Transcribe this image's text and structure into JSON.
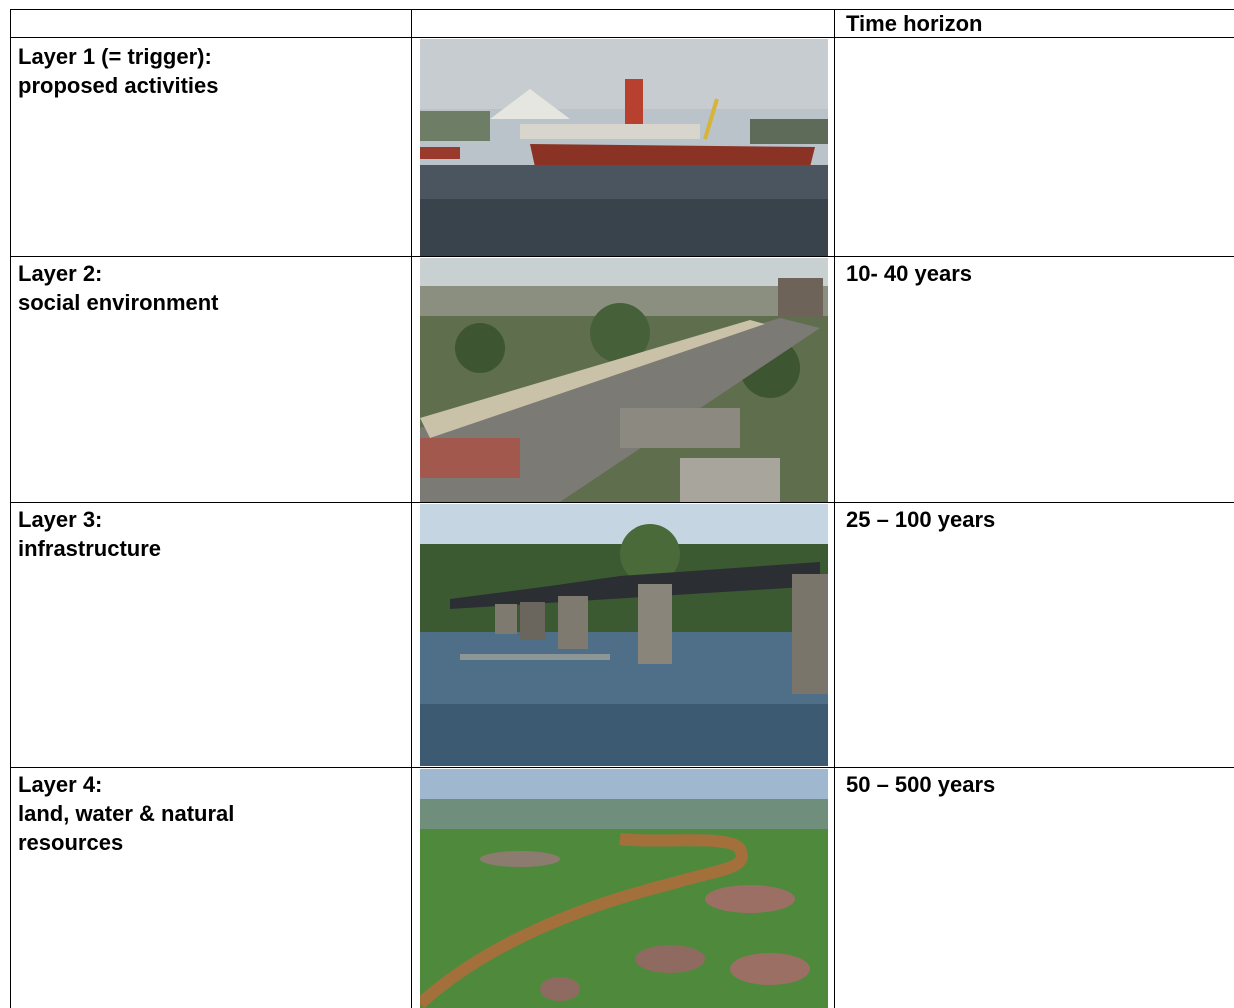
{
  "table": {
    "header": {
      "time_horizon": "Time horizon"
    },
    "rows": [
      {
        "label_lines": [
          "Layer 1 (= trigger):",
          "proposed activities"
        ]
      },
      {
        "label_lines": [
          "Layer 2:",
          "social environment"
        ],
        "time_horizon": "10- 40 years"
      },
      {
        "label_lines": [
          "Layer 3:",
          "infrastructure"
        ],
        "time_horizon": "25 – 100 years"
      },
      {
        "label_lines": [
          "Layer 4:",
          "land, water & natural",
          "resources"
        ],
        "time_horizon": "50 – 500 years"
      }
    ]
  }
}
